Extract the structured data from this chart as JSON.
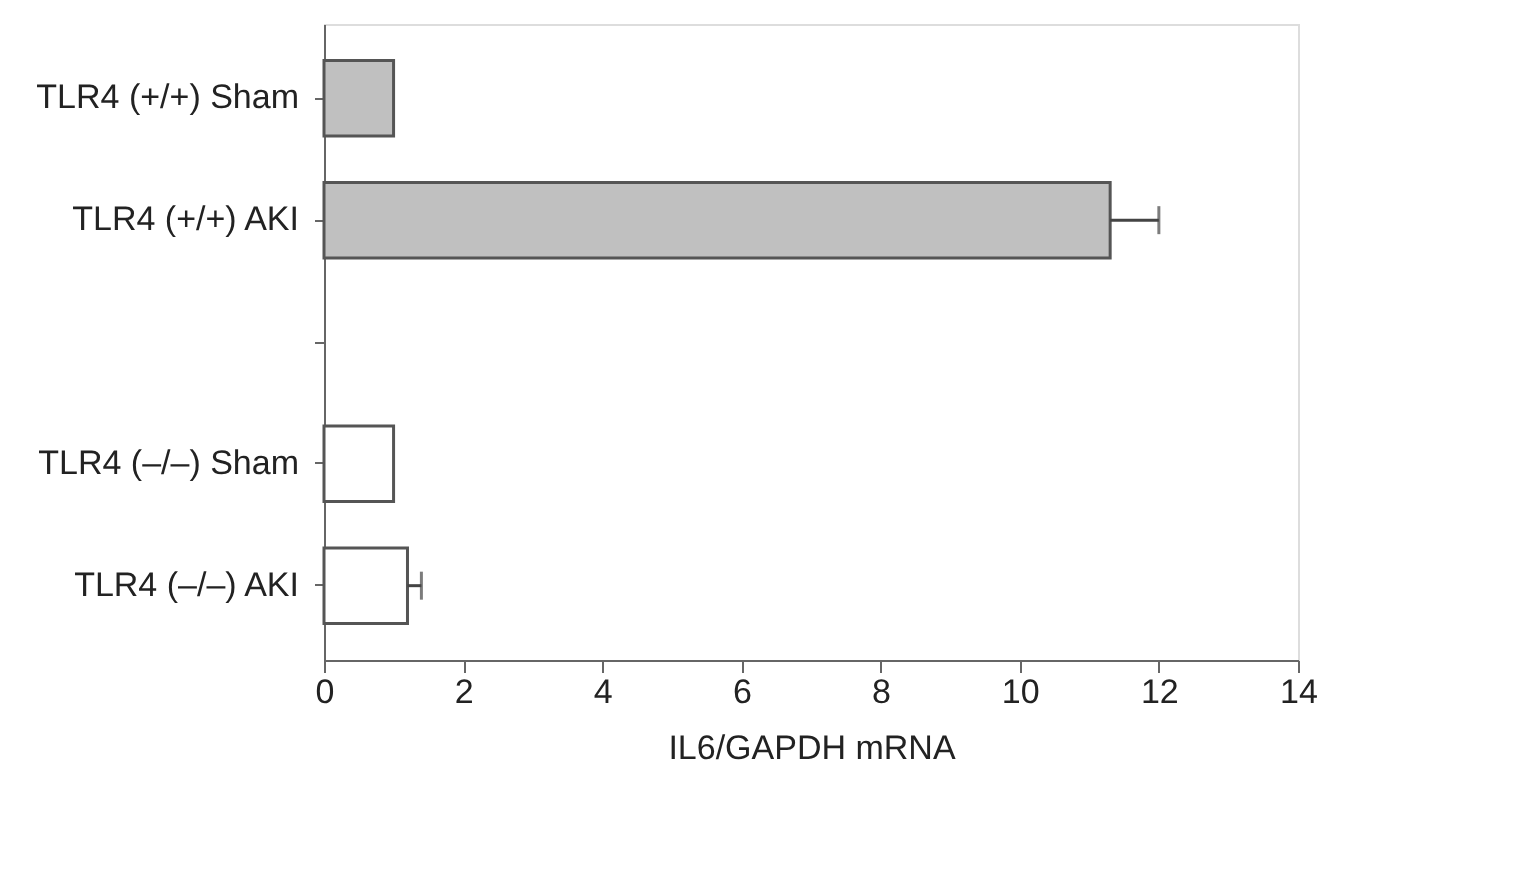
{
  "chart_data": {
    "type": "bar",
    "orientation": "horizontal",
    "xlabel": "IL6/GAPDH mRNA",
    "categories": [
      "TLR4 (+/+)   Sham",
      "TLR4 (+/+)   AKI",
      null,
      "TLR4 (–/–)   Sham",
      "TLR4 (–/–)   AKI"
    ],
    "values": [
      1.0,
      11.3,
      null,
      1.0,
      1.2
    ],
    "errors": [
      null,
      [
        11.3,
        12.0
      ],
      null,
      null,
      [
        1.2,
        1.4
      ]
    ],
    "colors": [
      "#c0c0c0",
      "#c0c0c0",
      "#ffffff",
      "#ffffff",
      "#ffffff"
    ],
    "xlim": [
      0,
      14
    ],
    "xticks": [
      0,
      2,
      4,
      6,
      8,
      10,
      12,
      14
    ],
    "grid": false
  }
}
